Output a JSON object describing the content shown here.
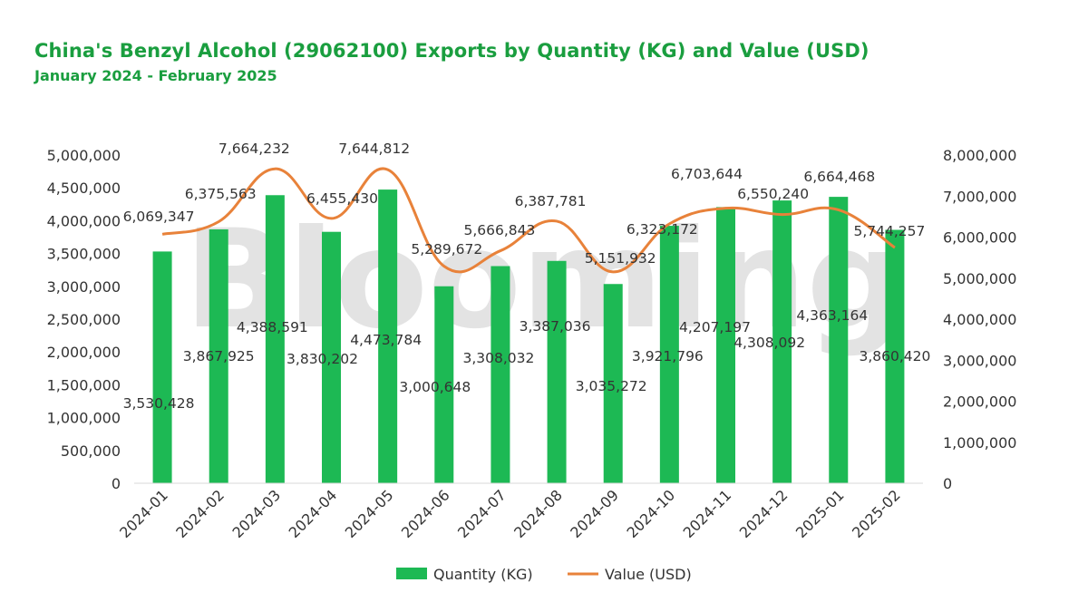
{
  "watermark": "Blooming",
  "chart_data": {
    "type": "bar",
    "title": "China's Benzyl Alcohol (29062100) Exports by Quantity (KG) and Value (USD)",
    "subtitle": "January 2024 - February 2025",
    "categories": [
      "2024-01",
      "2024-02",
      "2024-03",
      "2024-04",
      "2024-05",
      "2024-06",
      "2024-07",
      "2024-08",
      "2024-09",
      "2024-10",
      "2024-11",
      "2024-12",
      "2025-01",
      "2025-02"
    ],
    "series": [
      {
        "name": "Quantity (KG)",
        "type": "bar",
        "axis": "left",
        "color": "#1db954",
        "values": [
          3530428,
          3867925,
          4388591,
          3830202,
          4473784,
          3000648,
          3308032,
          3387036,
          3035272,
          3921796,
          4207197,
          4308092,
          4363164,
          3860420
        ],
        "labels": [
          "3,530,428",
          "3,867,925",
          "4,388,591",
          "3,830,202",
          "4,473,784",
          "3,000,648",
          "3,308,032",
          "3,387,036",
          "3,035,272",
          "3,921,796",
          "4,207,197",
          "4,308,092",
          "4,363,164",
          "3,860,420"
        ]
      },
      {
        "name": "Value (USD)",
        "type": "line",
        "axis": "right",
        "color": "#e8823a",
        "values": [
          6069347,
          6375563,
          7664232,
          6455430,
          7644812,
          5289672,
          5666843,
          6387781,
          5151932,
          6323172,
          6703644,
          6550240,
          6664468,
          5744257
        ],
        "labels": [
          "6,069,347",
          "6,375,563",
          "7,664,232",
          "6,455,430",
          "7,644,812",
          "5,289,672",
          "5,666,843",
          "6,387,781",
          "5,151,932",
          "6,323,172",
          "6,703,644",
          "6,550,240",
          "6,664,468",
          "5,744,257"
        ]
      }
    ],
    "left_axis": {
      "ylim": [
        0,
        5000000
      ],
      "ticks": [
        "0",
        "500,000",
        "1,000,000",
        "1,500,000",
        "2,000,000",
        "2,500,000",
        "3,000,000",
        "3,500,000",
        "4,000,000",
        "4,500,000",
        "5,000,000"
      ]
    },
    "right_axis": {
      "ylim": [
        0,
        8000000
      ],
      "ticks": [
        "0",
        "1,000,000",
        "2,000,000",
        "3,000,000",
        "4,000,000",
        "5,000,000",
        "6,000,000",
        "7,000,000",
        "8,000,000"
      ]
    },
    "grid": false,
    "legend": "bottom-center"
  }
}
